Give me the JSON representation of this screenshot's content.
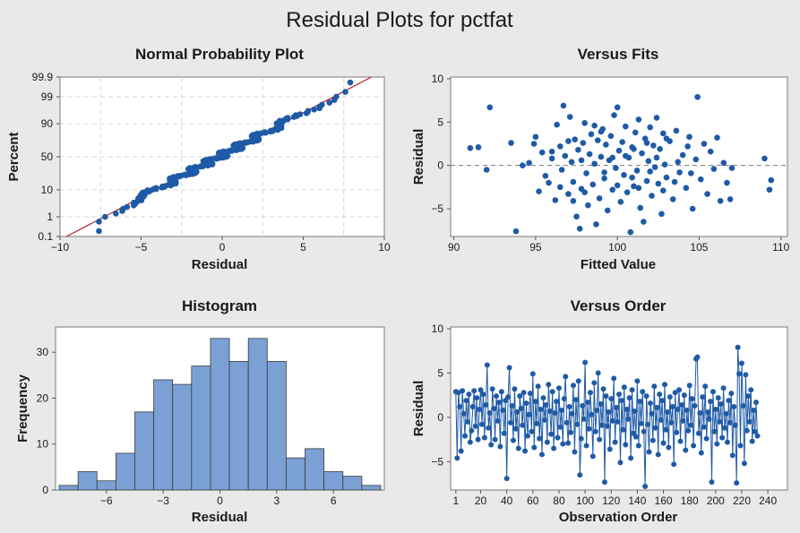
{
  "title": "Residual Plots for pctfat",
  "colors": {
    "marker": "#1f5aa6",
    "fit_line": "#b22222",
    "bar_fill": "#7aa0d4",
    "bar_edge": "#3c3c3c",
    "ref_line": "#777777"
  },
  "chart_data": [
    {
      "id": "normal_prob",
      "type": "scatter",
      "title": "Normal Probability Plot",
      "xlabel": "Residual",
      "ylabel": "Percent",
      "xlim": [
        -10,
        10
      ],
      "xticks": [
        -10,
        -5,
        0,
        5,
        10
      ],
      "y_scale": "normal-probability",
      "yticks": [
        0.1,
        1,
        10,
        50,
        90,
        99,
        99.9
      ],
      "ytick_labels": [
        "0.1",
        "1",
        "10",
        "50",
        "90",
        "99",
        "99.9"
      ],
      "grid": true,
      "fit_line": {
        "x": [
          -9.6,
          9.2
        ],
        "percent": [
          0.1,
          99.9
        ]
      },
      "n": 252,
      "residual_range": [
        -7.6,
        7.9
      ]
    },
    {
      "id": "versus_fits",
      "type": "scatter",
      "title": "Versus Fits",
      "xlabel": "Fitted Value",
      "ylabel": "Residual",
      "xlim": [
        89.8,
        110.4
      ],
      "xticks": [
        90,
        95,
        100,
        105,
        110
      ],
      "ylim": [
        -8.2,
        10.2
      ],
      "yticks": [
        -5,
        0,
        5,
        10
      ],
      "reference_line_y": 0,
      "points": [
        [
          91.0,
          2.0
        ],
        [
          91.5,
          2.1
        ],
        [
          92.0,
          -0.5
        ],
        [
          92.2,
          6.7
        ],
        [
          93.5,
          2.6
        ],
        [
          93.8,
          -7.6
        ],
        [
          94.2,
          0.0
        ],
        [
          94.6,
          0.3
        ],
        [
          94.9,
          2.5
        ],
        [
          95.0,
          3.3
        ],
        [
          95.2,
          -3.0
        ],
        [
          95.4,
          1.5
        ],
        [
          95.6,
          -1.2
        ],
        [
          95.8,
          -2.0
        ],
        [
          96.0,
          0.8
        ],
        [
          96.2,
          -4.0
        ],
        [
          96.3,
          4.7
        ],
        [
          96.5,
          2.2
        ],
        [
          96.6,
          -0.5
        ],
        [
          96.7,
          6.9
        ],
        [
          96.8,
          1.1
        ],
        [
          97.0,
          -3.3
        ],
        [
          97.1,
          5.6
        ],
        [
          97.2,
          0.4
        ],
        [
          97.3,
          -1.9
        ],
        [
          97.4,
          3.0
        ],
        [
          97.5,
          -5.9
        ],
        [
          97.6,
          1.8
        ],
        [
          97.7,
          -7.3
        ],
        [
          97.8,
          -2.7
        ],
        [
          97.9,
          2.6
        ],
        [
          98.0,
          4.9
        ],
        [
          98.1,
          -0.9
        ],
        [
          98.2,
          -4.6
        ],
        [
          98.3,
          1.3
        ],
        [
          98.4,
          3.6
        ],
        [
          98.5,
          -2.2
        ],
        [
          98.6,
          0.2
        ],
        [
          98.7,
          -6.8
        ],
        [
          98.8,
          2.9
        ],
        [
          98.9,
          -3.8
        ],
        [
          99.0,
          1.0
        ],
        [
          99.1,
          4.2
        ],
        [
          99.2,
          -1.5
        ],
        [
          99.3,
          2.4
        ],
        [
          99.4,
          -5.2
        ],
        [
          99.5,
          0.6
        ],
        [
          99.6,
          3.4
        ],
        [
          99.7,
          -2.8
        ],
        [
          99.8,
          5.8
        ],
        [
          99.9,
          -0.3
        ],
        [
          100.0,
          6.7
        ],
        [
          100.1,
          1.7
        ],
        [
          100.2,
          -4.2
        ],
        [
          100.3,
          2.7
        ],
        [
          100.4,
          -1.1
        ],
        [
          100.5,
          4.5
        ],
        [
          100.6,
          -3.1
        ],
        [
          100.7,
          0.9
        ],
        [
          100.8,
          -7.7
        ],
        [
          100.9,
          2.1
        ],
        [
          101.0,
          -2.4
        ],
        [
          101.1,
          3.8
        ],
        [
          101.2,
          -0.6
        ],
        [
          101.3,
          5.3
        ],
        [
          101.4,
          -4.9
        ],
        [
          101.5,
          1.4
        ],
        [
          101.6,
          -6.5
        ],
        [
          101.7,
          3.1
        ],
        [
          101.8,
          -1.8
        ],
        [
          101.9,
          0.5
        ],
        [
          102.0,
          4.4
        ],
        [
          102.1,
          -3.5
        ],
        [
          102.2,
          2.3
        ],
        [
          102.3,
          -0.2
        ],
        [
          102.4,
          5.5
        ],
        [
          102.5,
          -2.1
        ],
        [
          102.6,
          1.9
        ],
        [
          102.7,
          -5.6
        ],
        [
          102.8,
          3.7
        ],
        [
          102.9,
          0.1
        ],
        [
          103.0,
          -1.4
        ],
        [
          103.2,
          2.8
        ],
        [
          103.4,
          -3.9
        ],
        [
          103.6,
          4.0
        ],
        [
          103.8,
          -0.8
        ],
        [
          104.0,
          1.2
        ],
        [
          104.2,
          -2.6
        ],
        [
          104.4,
          3.3
        ],
        [
          104.6,
          -5.0
        ],
        [
          104.8,
          0.7
        ],
        [
          104.9,
          7.9
        ],
        [
          105.1,
          -1.6
        ],
        [
          105.3,
          2.5
        ],
        [
          105.5,
          -3.3
        ],
        [
          105.7,
          1.6
        ],
        [
          105.9,
          -0.4
        ],
        [
          106.1,
          3.2
        ],
        [
          106.3,
          -4.1
        ],
        [
          106.5,
          0.3
        ],
        [
          106.7,
          -2.0
        ],
        [
          106.9,
          -3.9
        ],
        [
          107.0,
          -0.3
        ],
        [
          109.0,
          0.8
        ],
        [
          109.3,
          -2.8
        ],
        [
          109.4,
          -1.7
        ],
        [
          96.0,
          1.6
        ],
        [
          97.0,
          2.8
        ],
        [
          98.0,
          -3.1
        ],
        [
          99.0,
          3.9
        ],
        [
          100.0,
          -2.3
        ],
        [
          101.0,
          1.9
        ],
        [
          102.0,
          -0.7
        ],
        [
          103.0,
          3.1
        ],
        [
          97.3,
          -4.1
        ],
        [
          98.6,
          4.6
        ],
        [
          99.7,
          0.9
        ],
        [
          100.9,
          -1.4
        ],
        [
          101.8,
          2.6
        ],
        [
          102.8,
          -2.9
        ],
        [
          103.7,
          0.4
        ],
        [
          104.3,
          2.2
        ],
        [
          96.5,
          -2.5
        ],
        [
          97.8,
          0.6
        ],
        [
          99.2,
          -0.8
        ],
        [
          100.5,
          1.1
        ],
        [
          101.3,
          -2.6
        ],
        [
          102.4,
          0.9
        ],
        [
          103.5,
          -1.9
        ],
        [
          104.5,
          -0.9
        ]
      ]
    },
    {
      "id": "histogram",
      "type": "bar",
      "title": "Histogram",
      "xlabel": "Residual",
      "ylabel": "Frequency",
      "bin_width": 1.5,
      "bin_centers": [
        -8.25,
        -6.75,
        -5.25,
        -3.75,
        -2.25,
        -0.75,
        0.75,
        2.25,
        3.75,
        5.25,
        6.75,
        8.25
      ],
      "xlim": [
        -9.0,
        9.0
      ],
      "xticks": [
        -6,
        -3,
        0,
        3,
        6
      ],
      "ylim": [
        0,
        35.5
      ],
      "yticks": [
        0,
        10,
        20,
        30
      ],
      "bins": [
        {
          "left": -8.4,
          "right": -7.6,
          "count": 1
        },
        {
          "left": -7.6,
          "right": -6.8,
          "count": 4
        },
        {
          "left": -6.8,
          "right": -6.0,
          "count": 2
        },
        {
          "left": -6.0,
          "right": -5.2,
          "count": 8
        },
        {
          "left": -5.2,
          "right": -4.4,
          "count": 17
        },
        {
          "left": -4.4,
          "right": -3.6,
          "count": 24
        },
        {
          "left": -3.6,
          "right": -2.8,
          "count": 23
        },
        {
          "left": -2.8,
          "right": -2.0,
          "count": 27
        },
        {
          "left": -2.0,
          "right": -1.2,
          "count": 33
        },
        {
          "left": -1.2,
          "right": -0.4,
          "count": 28
        },
        {
          "left": -0.4,
          "right": 0.4,
          "count": 33
        },
        {
          "left": 0.4,
          "right": 1.2,
          "count": 28
        },
        {
          "left": 1.2,
          "right": 2.0,
          "count": 7
        },
        {
          "left": 2.0,
          "right": 2.8,
          "count": 9
        },
        {
          "left": 2.8,
          "right": 3.6,
          "count": 4
        },
        {
          "left": 3.6,
          "right": 4.4,
          "count": 3
        },
        {
          "left": 4.4,
          "right": 5.2,
          "count": 1
        }
      ]
    },
    {
      "id": "versus_order",
      "type": "line",
      "title": "Versus Order",
      "xlabel": "Observation Order",
      "ylabel": "Residual",
      "xlim": [
        -3,
        255
      ],
      "xticks": [
        1,
        20,
        40,
        60,
        80,
        100,
        120,
        140,
        160,
        180,
        200,
        220,
        240
      ],
      "ylim": [
        -8.2,
        10.2
      ],
      "yticks": [
        -5,
        0,
        5,
        10
      ],
      "values": [
        2.9,
        -4.6,
        2.8,
        1.2,
        -3.8,
        3.0,
        0.4,
        -2.1,
        1.9,
        -0.5,
        2.6,
        -2.8,
        -1.5,
        1.2,
        3.0,
        -1.0,
        2.2,
        -2.5,
        0.9,
        3.1,
        -0.8,
        2.6,
        -2.3,
        1.4,
        5.9,
        -1.2,
        0.5,
        -3.1,
        3.2,
        1.0,
        -2.5,
        2.4,
        -0.4,
        1.7,
        -3.3,
        2.9,
        0.8,
        -1.8,
        1.9,
        -6.9,
        2.3,
        5.6,
        -0.6,
        1.3,
        -2.6,
        3.2,
        -1.3,
        0.6,
        -3.5,
        2.4,
        1.0,
        -0.9,
        2.8,
        -3.8,
        1.6,
        -2.1,
        0.3,
        2.7,
        -1.6,
        4.9,
        -3.4,
        1.8,
        -0.7,
        3.5,
        -2.4,
        0.9,
        -4.2,
        2.2,
        -0.3,
        1.4,
        -2.8,
        3.7,
        0.7,
        -1.9,
        2.9,
        -3.5,
        0.5,
        1.8,
        -2.3,
        3.3,
        -1.1,
        0.8,
        -3.0,
        2.1,
        4.6,
        -0.6,
        -2.9,
        1.2,
        -1.7,
        0.4,
        3.6,
        -3.9,
        2.0,
        -0.8,
        4.1,
        -6.5,
        -2.4,
        1.3,
        -0.2,
        6.2,
        -3.2,
        1.7,
        -1.3,
        2.8,
        0.3,
        -4.4,
        3.9,
        -1.6,
        0.8,
        5.0,
        -2.5,
        1.5,
        -0.9,
        3.2,
        -7.3,
        2.4,
        -1.0,
        0.6,
        -3.6,
        2.1,
        -0.4,
        4.4,
        -2.8,
        1.1,
        -0.5,
        2.6,
        -5.1,
        1.9,
        -1.4,
        3.4,
        -3.1,
        0.9,
        -0.2,
        2.2,
        -4.6,
        3.1,
        -1.8,
        0.7,
        -2.2,
        4.1,
        -3.2,
        1.8,
        -0.7,
        2.9,
        -1.6,
        -7.8,
        2.4,
        -0.8,
        -3.9,
        1.6,
        0.4,
        -2.6,
        3.5,
        -1.2,
        1.1,
        -4.2,
        2.6,
        -0.3,
        1.9,
        -2.9,
        3.7,
        -1.4,
        0.6,
        -3.4,
        2.3,
        -0.6,
        1.2,
        -5.3,
        2.8,
        -1.7,
        0.9,
        3.1,
        -2.7,
        1.4,
        -0.4,
        2.5,
        -3.7,
        0.8,
        -1.5,
        3.6,
        -0.9,
        2.1,
        -3.2,
        1.3,
        6.6,
        6.8,
        -1.8,
        0.5,
        -4.0,
        2.3,
        -1.1,
        3.5,
        -2.4,
        0.6,
        -0.2,
        1.8,
        -7.3,
        2.9,
        -1.6,
        0.9,
        -3.0,
        2.2,
        -0.5,
        1.5,
        -2.3,
        3.3,
        -1.2,
        0.4,
        -2.8,
        1.9,
        -0.6,
        2.7,
        -4.3,
        1.2,
        -0.9,
        -7.4,
        7.9,
        4.9,
        -3.2,
        6.1,
        1.3,
        -5.2,
        4.8,
        -1.5,
        2.4,
        -0.5,
        3.1,
        -2.7,
        0.8,
        -1.6,
        1.7,
        -2.1
      ]
    }
  ]
}
